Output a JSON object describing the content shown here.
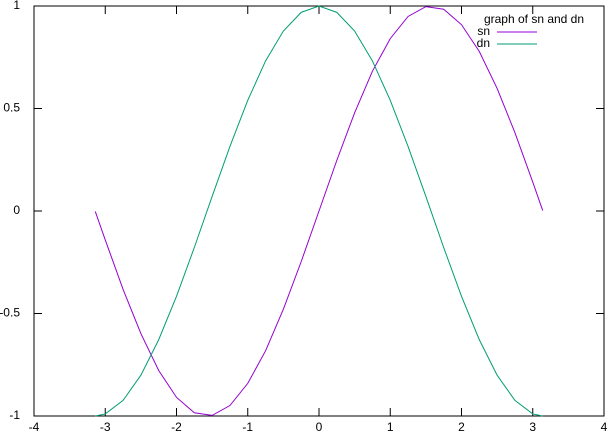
{
  "chart_data": {
    "type": "line",
    "legend_title": "graph of sn and dn",
    "x": [
      -3.14,
      -3,
      -2.75,
      -2.5,
      -2.25,
      -2,
      -1.75,
      -1.5,
      -1.25,
      -1,
      -0.75,
      -0.5,
      -0.25,
      0,
      0.25,
      0.5,
      0.75,
      1,
      1.25,
      1.5,
      1.75,
      2,
      2.25,
      2.5,
      2.75,
      3,
      3.14
    ],
    "series": [
      {
        "name": "sn",
        "color": "#9400d3",
        "values": [
          -0.002,
          -0.141,
          -0.382,
          -0.598,
          -0.778,
          -0.909,
          -0.984,
          -0.997,
          -0.949,
          -0.841,
          -0.682,
          -0.479,
          -0.247,
          0,
          0.247,
          0.479,
          0.682,
          0.841,
          0.949,
          0.997,
          0.984,
          0.909,
          0.778,
          0.598,
          0.382,
          0.141,
          0.002
        ]
      },
      {
        "name": "dn",
        "color": "#009e73",
        "values": [
          -1,
          -0.99,
          -0.924,
          -0.801,
          -0.628,
          -0.416,
          -0.178,
          0.071,
          0.315,
          0.54,
          0.732,
          0.878,
          0.969,
          1,
          0.969,
          0.878,
          0.732,
          0.54,
          0.315,
          0.071,
          -0.178,
          -0.416,
          -0.628,
          -0.801,
          -0.924,
          -0.99,
          -1
        ]
      }
    ],
    "xlim": [
      -4,
      4
    ],
    "xticks": [
      -4,
      -3,
      -2,
      -1,
      0,
      1,
      2,
      3,
      4
    ],
    "ylim": [
      -1,
      1
    ],
    "yticks": [
      -1,
      -0.5,
      0,
      0.5,
      1
    ],
    "grid": false,
    "legend": "upper right"
  }
}
